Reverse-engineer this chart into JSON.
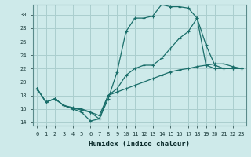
{
  "xlabel": "Humidex (Indice chaleur)",
  "bg_color": "#ceeaea",
  "grid_color": "#aacece",
  "line_color": "#1a6e6a",
  "xlim": [
    -0.5,
    23.5
  ],
  "ylim": [
    13.5,
    31.5
  ],
  "yticks": [
    14,
    16,
    18,
    20,
    22,
    24,
    26,
    28,
    30
  ],
  "xticks": [
    0,
    1,
    2,
    3,
    4,
    5,
    6,
    7,
    8,
    9,
    10,
    11,
    12,
    13,
    14,
    15,
    16,
    17,
    18,
    19,
    20,
    21,
    22,
    23
  ],
  "line1_x": [
    0,
    1,
    2,
    3,
    4,
    5,
    6,
    7,
    8,
    9,
    10,
    11,
    12,
    13,
    14,
    15,
    16,
    17,
    18,
    19,
    20,
    21,
    22,
    23
  ],
  "line1_y": [
    19,
    17,
    17.5,
    16.5,
    16.0,
    15.5,
    14.2,
    14.5,
    17.5,
    21.5,
    27.5,
    29.5,
    29.5,
    29.8,
    31.5,
    31.2,
    31.2,
    31.0,
    29.5,
    22.5,
    22.0,
    22.0,
    22.0,
    22.0
  ],
  "line2_x": [
    0,
    1,
    2,
    3,
    4,
    5,
    6,
    7,
    8,
    9,
    10,
    11,
    12,
    13,
    14,
    15,
    16,
    17,
    18,
    19,
    20,
    21,
    22,
    23
  ],
  "line2_y": [
    19,
    17,
    17.5,
    16.5,
    16.2,
    15.8,
    15.5,
    15.0,
    18.0,
    19.0,
    21.0,
    22.0,
    22.5,
    22.5,
    23.5,
    25.0,
    26.5,
    27.5,
    29.5,
    25.5,
    22.5,
    22.0,
    22.0,
    22.0
  ],
  "line3_x": [
    0,
    1,
    2,
    3,
    4,
    5,
    6,
    7,
    8,
    9,
    10,
    11,
    12,
    13,
    14,
    15,
    16,
    17,
    18,
    19,
    20,
    21,
    22,
    23
  ],
  "line3_y": [
    19,
    17,
    17.5,
    16.5,
    16.0,
    16.0,
    15.5,
    14.5,
    18.0,
    18.5,
    19.0,
    19.5,
    20.0,
    20.5,
    21.0,
    21.5,
    21.8,
    22.0,
    22.3,
    22.5,
    22.7,
    22.7,
    22.3,
    22.0
  ],
  "marker": "+"
}
